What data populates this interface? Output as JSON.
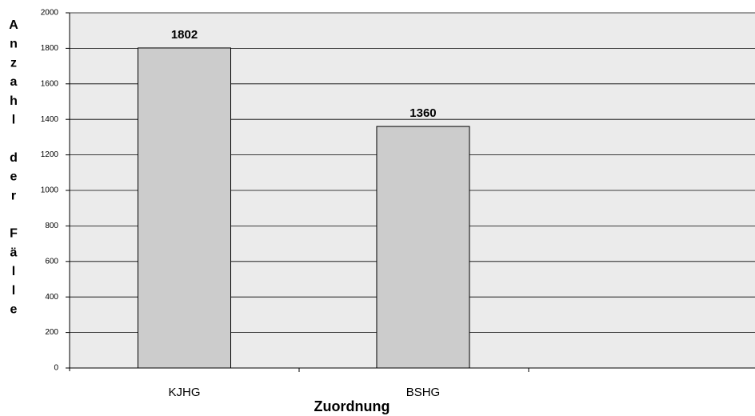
{
  "chart_data": {
    "type": "bar",
    "categories": [
      "KJHG",
      "BSHG"
    ],
    "values": [
      1802,
      1360
    ],
    "color": "#cccccc",
    "xlabel": "Zuordnung",
    "ylabel": "Anzahl der Fälle",
    "ylim": [
      0,
      2000
    ],
    "yticks": [
      0,
      200,
      400,
      600,
      800,
      1000,
      1200,
      1400,
      1600,
      1800,
      2000
    ],
    "grid": true
  }
}
